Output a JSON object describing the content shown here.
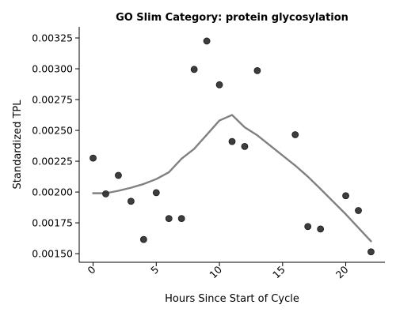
{
  "chart_data": {
    "type": "scatter",
    "title": "GO Slim Category: protein glycosylation",
    "xlabel": "Hours Since Start of Cycle",
    "ylabel": "Standardized TPL",
    "xlim": [
      -1.1,
      23.1
    ],
    "ylim": [
      0.00143,
      0.00334
    ],
    "xticks": [
      0,
      5,
      10,
      15,
      20
    ],
    "xtick_labels": [
      "0",
      "5",
      "10",
      "15",
      "20"
    ],
    "xtick_rotation": 45,
    "yticks": [
      0.0015,
      0.00175,
      0.002,
      0.00225,
      0.0025,
      0.00275,
      0.003,
      0.00325
    ],
    "ytick_labels": [
      "0.00150",
      "0.00175",
      "0.00200",
      "0.00225",
      "0.00250",
      "0.00275",
      "0.00300",
      "0.00325"
    ],
    "grid": false,
    "point_color": "#333333",
    "line_color": "#808080",
    "points": {
      "x": [
        0,
        1,
        2,
        3,
        4,
        5,
        6,
        7,
        8,
        9,
        10,
        11,
        12,
        13,
        16,
        17,
        18,
        20,
        21,
        22
      ],
      "y": [
        0.002275,
        0.001985,
        0.002135,
        0.001925,
        0.001615,
        0.001995,
        0.001785,
        0.001785,
        0.002995,
        0.003225,
        0.00287,
        0.00241,
        0.00237,
        0.002985,
        0.002465,
        0.00172,
        0.0017,
        0.00197,
        0.00185,
        0.001515
      ]
    },
    "trend": {
      "x": [
        0,
        1,
        2,
        3,
        4,
        5,
        6,
        7,
        8,
        9,
        10,
        11,
        12,
        13,
        16,
        17,
        18,
        20,
        21,
        22
      ],
      "y": [
        0.00199,
        0.00199,
        0.00201,
        0.002035,
        0.002065,
        0.002105,
        0.00216,
        0.00227,
        0.00235,
        0.002465,
        0.00258,
        0.002625,
        0.002525,
        0.00246,
        0.002215,
        0.002125,
        0.002025,
        0.00182,
        0.00171,
        0.0016
      ]
    }
  }
}
